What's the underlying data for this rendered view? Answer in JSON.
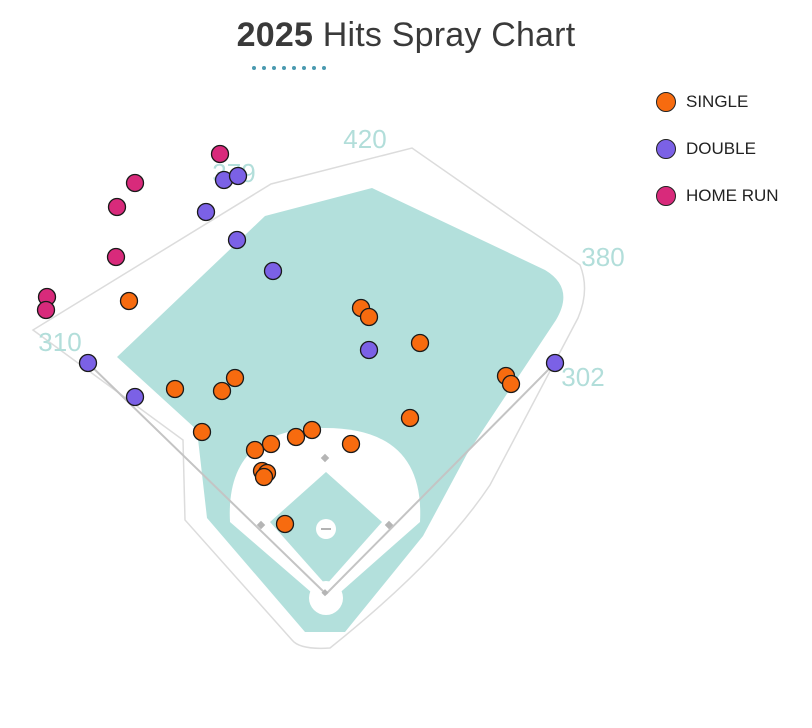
{
  "title": {
    "year": "2025",
    "rest": "Hits Spray Chart"
  },
  "colors": {
    "single": "#f76b0f",
    "double": "#7b61e6",
    "home_run": "#d82a7b",
    "outfield": "#b3e0dc",
    "title_rule": "#4a9ab0",
    "distance_label": "#b2deda"
  },
  "chart_data": {
    "type": "scatter",
    "title": "2025 Hits Spray Chart",
    "fence_distances": [
      "310",
      "420",
      "379",
      "380",
      "302"
    ],
    "legend": [
      {
        "key": "single",
        "label": "SINGLE"
      },
      {
        "key": "double",
        "label": "DOUBLE"
      },
      {
        "key": "home_run",
        "label": "HOME RUN"
      }
    ],
    "legend_placement": "top-right",
    "series": [
      {
        "name": "SINGLE",
        "key": "single",
        "points": [
          [
            129,
            301
          ],
          [
            361,
            308
          ],
          [
            369,
            317
          ],
          [
            420,
            343
          ],
          [
            506,
            376
          ],
          [
            511,
            384
          ],
          [
            235,
            378
          ],
          [
            222,
            391
          ],
          [
            175,
            389
          ],
          [
            410,
            418
          ],
          [
            202,
            432
          ],
          [
            312,
            430
          ],
          [
            296,
            437
          ],
          [
            271,
            444
          ],
          [
            255,
            450
          ],
          [
            351,
            444
          ],
          [
            262,
            471
          ],
          [
            267,
            473
          ],
          [
            264,
            477
          ],
          [
            285,
            524
          ]
        ]
      },
      {
        "name": "DOUBLE",
        "key": "double",
        "points": [
          [
            224,
            180
          ],
          [
            238,
            176
          ],
          [
            206,
            212
          ],
          [
            237,
            240
          ],
          [
            273,
            271
          ],
          [
            88,
            363
          ],
          [
            135,
            397
          ],
          [
            369,
            350
          ],
          [
            555,
            363
          ]
        ]
      },
      {
        "name": "HOME RUN",
        "key": "home_run",
        "points": [
          [
            220,
            154
          ],
          [
            135,
            183
          ],
          [
            117,
            207
          ],
          [
            116,
            257
          ],
          [
            47,
            297
          ],
          [
            46,
            310
          ]
        ]
      }
    ]
  }
}
